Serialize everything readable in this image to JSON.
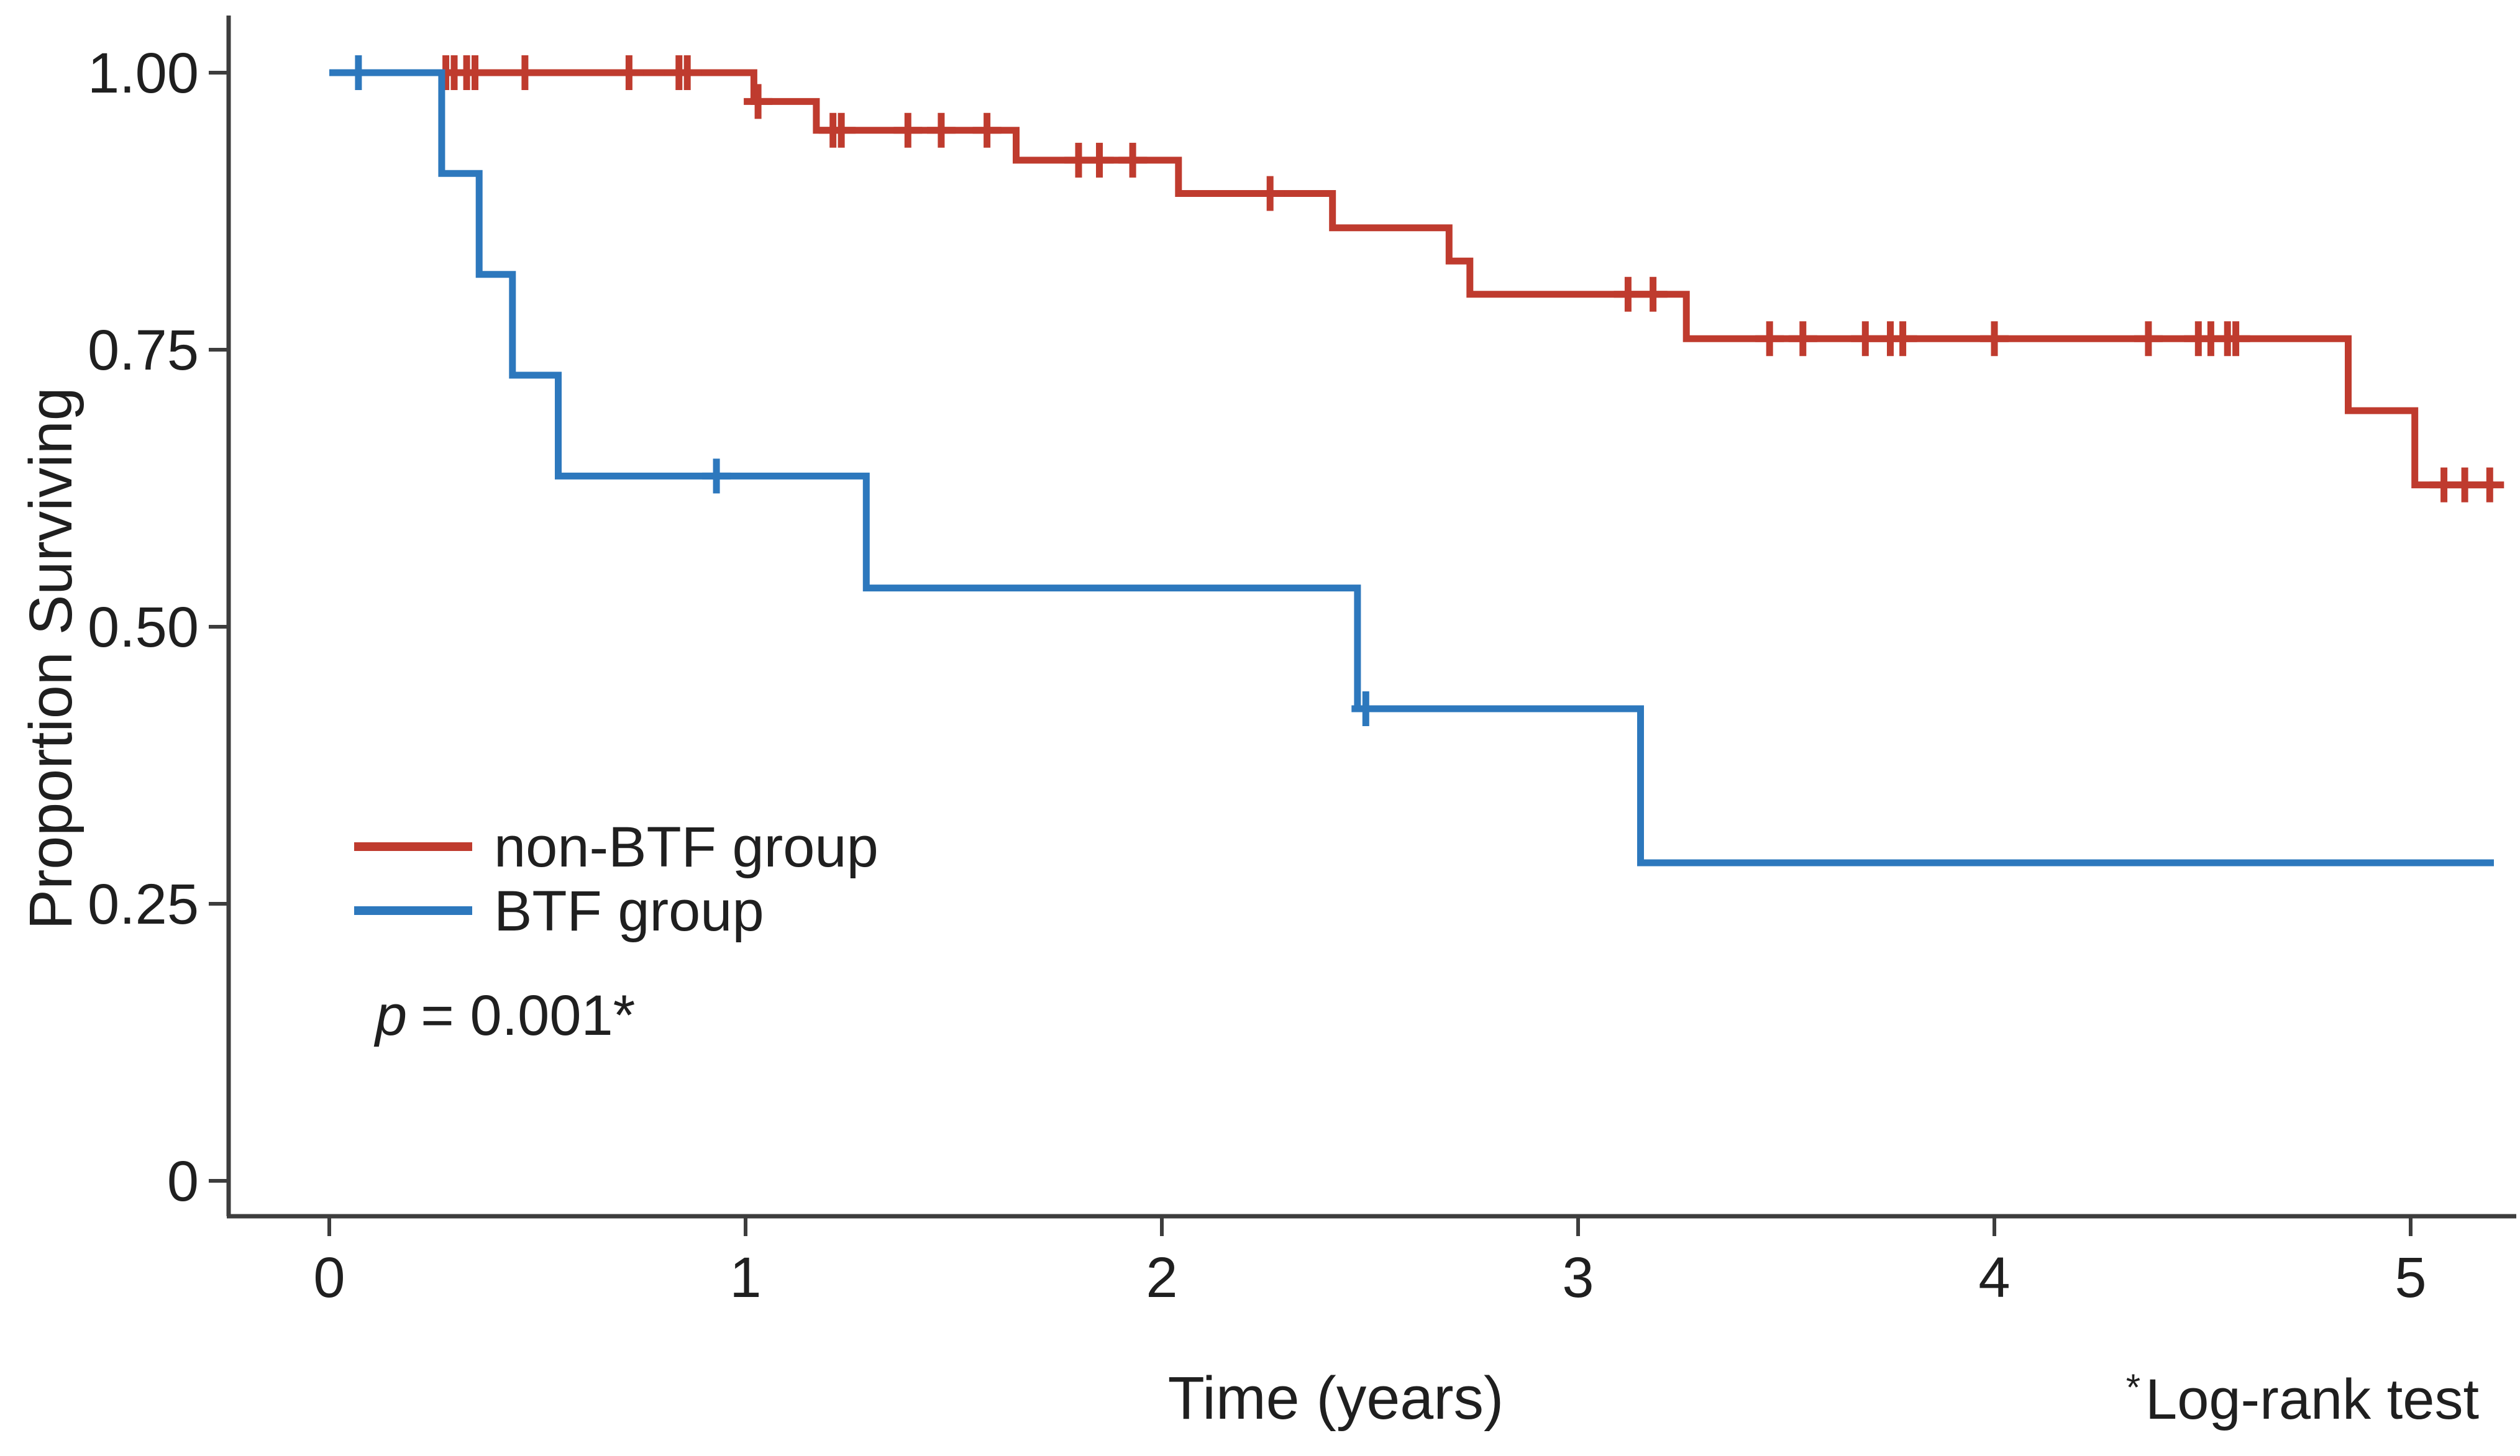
{
  "chart_data": {
    "type": "line",
    "subtype": "kaplan-meier-step-curves",
    "title": "",
    "xlabel": "Time (years)",
    "ylabel": "Proportion Surviving",
    "xlim": [
      0,
      5.25
    ],
    "ylim": [
      0,
      1.0
    ],
    "grid": false,
    "x_ticks": [
      0,
      1,
      2,
      3,
      4,
      5
    ],
    "x_tick_labels": [
      "0",
      "1",
      "2",
      "3",
      "4",
      "5"
    ],
    "y_ticks": [
      1.0,
      0.75,
      0.5,
      0.25,
      0
    ],
    "y_tick_labels": [
      "1.00",
      "0.75",
      "0.50",
      "0.25",
      "0"
    ],
    "legend_position": "inside plot, left lower area",
    "series": [
      {
        "name": "non-BTF group",
        "color": "#bf3b2e",
        "start": [
          0,
          1.0
        ],
        "end_t": 5.2,
        "steps": [
          [
            1.02,
            0.974
          ],
          [
            1.17,
            0.948
          ],
          [
            1.65,
            0.921
          ],
          [
            2.04,
            0.891
          ],
          [
            2.41,
            0.86
          ],
          [
            2.69,
            0.83
          ],
          [
            2.74,
            0.8
          ],
          [
            3.26,
            0.76
          ],
          [
            4.85,
            0.695
          ],
          [
            5.01,
            0.628
          ]
        ],
        "censor_marks": [
          [
            0.28,
            1.0
          ],
          [
            0.3,
            1.0
          ],
          [
            0.33,
            1.0
          ],
          [
            0.35,
            1.0
          ],
          [
            0.47,
            1.0
          ],
          [
            0.72,
            1.0
          ],
          [
            0.84,
            1.0
          ],
          [
            0.86,
            1.0
          ],
          [
            1.03,
            0.974
          ],
          [
            1.21,
            0.948
          ],
          [
            1.23,
            0.948
          ],
          [
            1.39,
            0.948
          ],
          [
            1.47,
            0.948
          ],
          [
            1.58,
            0.948
          ],
          [
            1.8,
            0.921
          ],
          [
            1.85,
            0.921
          ],
          [
            1.93,
            0.921
          ],
          [
            2.26,
            0.891
          ],
          [
            3.12,
            0.8
          ],
          [
            3.18,
            0.8
          ],
          [
            3.46,
            0.76
          ],
          [
            3.54,
            0.76
          ],
          [
            3.69,
            0.76
          ],
          [
            3.75,
            0.76
          ],
          [
            3.78,
            0.76
          ],
          [
            4.0,
            0.76
          ],
          [
            4.37,
            0.76
          ],
          [
            4.49,
            0.76
          ],
          [
            4.52,
            0.76
          ],
          [
            4.56,
            0.76
          ],
          [
            4.58,
            0.76
          ],
          [
            5.08,
            0.628
          ],
          [
            5.13,
            0.628
          ],
          [
            5.19,
            0.628
          ]
        ]
      },
      {
        "name": "BTF group",
        "color": "#2d78bd",
        "start": [
          0,
          1.0
        ],
        "end_t": 5.2,
        "steps": [
          [
            0.27,
            0.909
          ],
          [
            0.36,
            0.818
          ],
          [
            0.44,
            0.727
          ],
          [
            0.55,
            0.636
          ],
          [
            1.29,
            0.535
          ],
          [
            2.47,
            0.426
          ],
          [
            3.15,
            0.287
          ]
        ],
        "censor_marks": [
          [
            0.07,
            1.0
          ],
          [
            0.93,
            0.636
          ],
          [
            2.49,
            0.426
          ]
        ]
      }
    ]
  },
  "annotations": {
    "p_prefix": "p",
    "p_rest": "= 0.001*"
  },
  "footnote": {
    "star": "*",
    "text": "Log-rank test"
  },
  "colors": {
    "axis": "#3d3d3d",
    "text": "#1f1f1f"
  }
}
